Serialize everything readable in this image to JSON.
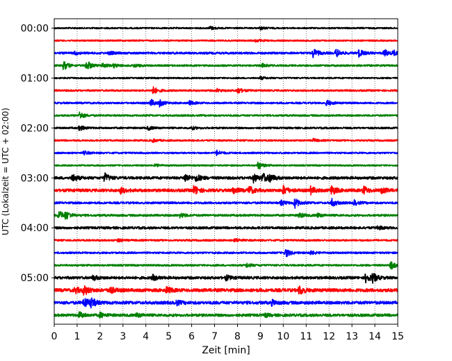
{
  "chart_data": {
    "type": "line",
    "title": "",
    "xlabel": "Zeit  [min]",
    "ylabel": "UTC (Lokalzeit = UTC + 02:00)",
    "xlim": [
      0,
      15
    ],
    "x_ticks": [
      "0",
      "1",
      "2",
      "3",
      "4",
      "5",
      "6",
      "7",
      "8",
      "9",
      "10",
      "11",
      "12",
      "13",
      "14",
      "15"
    ],
    "y_ticks": [
      "00:00",
      "01:00",
      "02:00",
      "03:00",
      "04:00",
      "05:00"
    ],
    "y_tick_rows": [
      0,
      4,
      8,
      12,
      16,
      20
    ],
    "row_count": 24,
    "row_minutes": 15,
    "vertical_grid": true,
    "grid_style": "dotted",
    "colors": [
      "#000000",
      "#ff0000",
      "#0000ff",
      "#008000"
    ],
    "series": [
      {
        "start": "00:00",
        "color": "#000000",
        "noise": 0.25,
        "events": [
          [
            6.8,
            0.6
          ],
          [
            9.0,
            0.5
          ]
        ]
      },
      {
        "start": "00:15",
        "color": "#ff0000",
        "noise": 0.25,
        "events": [
          [
            8.8,
            0.5
          ]
        ]
      },
      {
        "start": "00:30",
        "color": "#0000ff",
        "noise": 0.35,
        "events": [
          [
            0.9,
            0.5
          ],
          [
            2.4,
            0.5
          ],
          [
            11.3,
            1.6
          ],
          [
            12.3,
            1.4
          ],
          [
            13.3,
            1.2
          ],
          [
            14.4,
            1.2
          ],
          [
            14.8,
            0.8
          ]
        ]
      },
      {
        "start": "00:45",
        "color": "#008000",
        "noise": 0.3,
        "events": [
          [
            0.4,
            1.5
          ],
          [
            1.4,
            1.8
          ],
          [
            2.1,
            0.8
          ],
          [
            2.6,
            0.6
          ],
          [
            3.5,
            0.6
          ],
          [
            9.1,
            0.6
          ]
        ]
      },
      {
        "start": "01:00",
        "color": "#000000",
        "noise": 0.25,
        "events": [
          [
            9.0,
            0.5
          ]
        ]
      },
      {
        "start": "01:15",
        "color": "#ff0000",
        "noise": 0.3,
        "events": [
          [
            4.3,
            1.3
          ],
          [
            7.1,
            0.5
          ],
          [
            8.0,
            1.0
          ]
        ]
      },
      {
        "start": "01:30",
        "color": "#0000ff",
        "noise": 0.3,
        "events": [
          [
            4.2,
            1.3
          ],
          [
            4.6,
            1.0
          ],
          [
            5.9,
            0.6
          ],
          [
            11.9,
            1.0
          ]
        ]
      },
      {
        "start": "01:45",
        "color": "#008000",
        "noise": 0.3,
        "events": [
          [
            1.1,
            1.2
          ]
        ]
      },
      {
        "start": "02:00",
        "color": "#000000",
        "noise": 0.3,
        "events": [
          [
            1.1,
            0.9
          ],
          [
            4.1,
            0.6
          ],
          [
            6.0,
            0.5
          ]
        ]
      },
      {
        "start": "02:15",
        "color": "#ff0000",
        "noise": 0.28,
        "events": [
          [
            4.3,
            0.5
          ],
          [
            11.3,
            0.5
          ]
        ]
      },
      {
        "start": "02:30",
        "color": "#0000ff",
        "noise": 0.28,
        "events": [
          [
            1.3,
            0.6
          ],
          [
            7.1,
            0.8
          ]
        ]
      },
      {
        "start": "02:45",
        "color": "#008000",
        "noise": 0.25,
        "events": [
          [
            4.4,
            0.5
          ],
          [
            8.9,
            1.3
          ]
        ]
      },
      {
        "start": "03:00",
        "color": "#000000",
        "noise": 0.45,
        "events": [
          [
            0.8,
            1.3
          ],
          [
            2.2,
            1.5
          ],
          [
            5.7,
            1.4
          ],
          [
            6.2,
            1.2
          ],
          [
            8.7,
            1.4
          ],
          [
            9.1,
            1.5
          ],
          [
            9.4,
            1.2
          ]
        ]
      },
      {
        "start": "03:15",
        "color": "#ff0000",
        "noise": 0.5,
        "events": [
          [
            2.9,
            0.9
          ],
          [
            6.1,
            1.6
          ],
          [
            7.8,
            1.2
          ],
          [
            8.5,
            1.4
          ],
          [
            10.0,
            1.4
          ],
          [
            11.2,
            1.2
          ],
          [
            12.1,
            1.6
          ],
          [
            13.5,
            1.3
          ],
          [
            14.3,
            1.0
          ]
        ]
      },
      {
        "start": "03:30",
        "color": "#0000ff",
        "noise": 0.35,
        "events": [
          [
            9.9,
            0.9
          ],
          [
            10.5,
            1.6
          ],
          [
            12.1,
            1.4
          ],
          [
            13.1,
            0.8
          ]
        ]
      },
      {
        "start": "03:45",
        "color": "#008000",
        "noise": 0.35,
        "events": [
          [
            0.2,
            1.6
          ],
          [
            0.5,
            1.2
          ],
          [
            5.5,
            0.8
          ],
          [
            10.7,
            0.8
          ],
          [
            11.5,
            0.6
          ]
        ]
      },
      {
        "start": "04:00",
        "color": "#000000",
        "noise": 0.4,
        "events": [
          [
            14.1,
            0.6
          ]
        ]
      },
      {
        "start": "04:15",
        "color": "#ff0000",
        "noise": 0.3,
        "events": [
          [
            2.8,
            0.5
          ],
          [
            7.9,
            0.6
          ]
        ]
      },
      {
        "start": "04:30",
        "color": "#0000ff",
        "noise": 0.3,
        "events": [
          [
            10.1,
            1.5
          ],
          [
            11.2,
            0.7
          ]
        ]
      },
      {
        "start": "04:45",
        "color": "#008000",
        "noise": 0.3,
        "events": [
          [
            8.4,
            0.7
          ],
          [
            14.7,
            1.3
          ]
        ]
      },
      {
        "start": "05:00",
        "color": "#000000",
        "noise": 0.45,
        "events": [
          [
            1.7,
            0.8
          ],
          [
            4.3,
            0.9
          ],
          [
            7.5,
            0.8
          ],
          [
            13.6,
            1.6
          ],
          [
            13.9,
            1.3
          ]
        ]
      },
      {
        "start": "05:15",
        "color": "#ff0000",
        "noise": 0.55,
        "events": [
          [
            0.9,
            1.0
          ],
          [
            1.3,
            1.6
          ],
          [
            2.4,
            1.3
          ],
          [
            4.9,
            1.0
          ],
          [
            10.7,
            1.5
          ]
        ]
      },
      {
        "start": "05:30",
        "color": "#0000ff",
        "noise": 0.5,
        "events": [
          [
            1.3,
            1.8
          ],
          [
            1.6,
            1.5
          ],
          [
            5.3,
            0.9
          ],
          [
            9.5,
            0.8
          ]
        ]
      },
      {
        "start": "05:45",
        "color": "#008000",
        "noise": 0.45,
        "events": [
          [
            1.1,
            1.0
          ],
          [
            2.0,
            0.8
          ],
          [
            3.6,
            0.6
          ],
          [
            9.2,
            0.5
          ]
        ]
      }
    ]
  }
}
